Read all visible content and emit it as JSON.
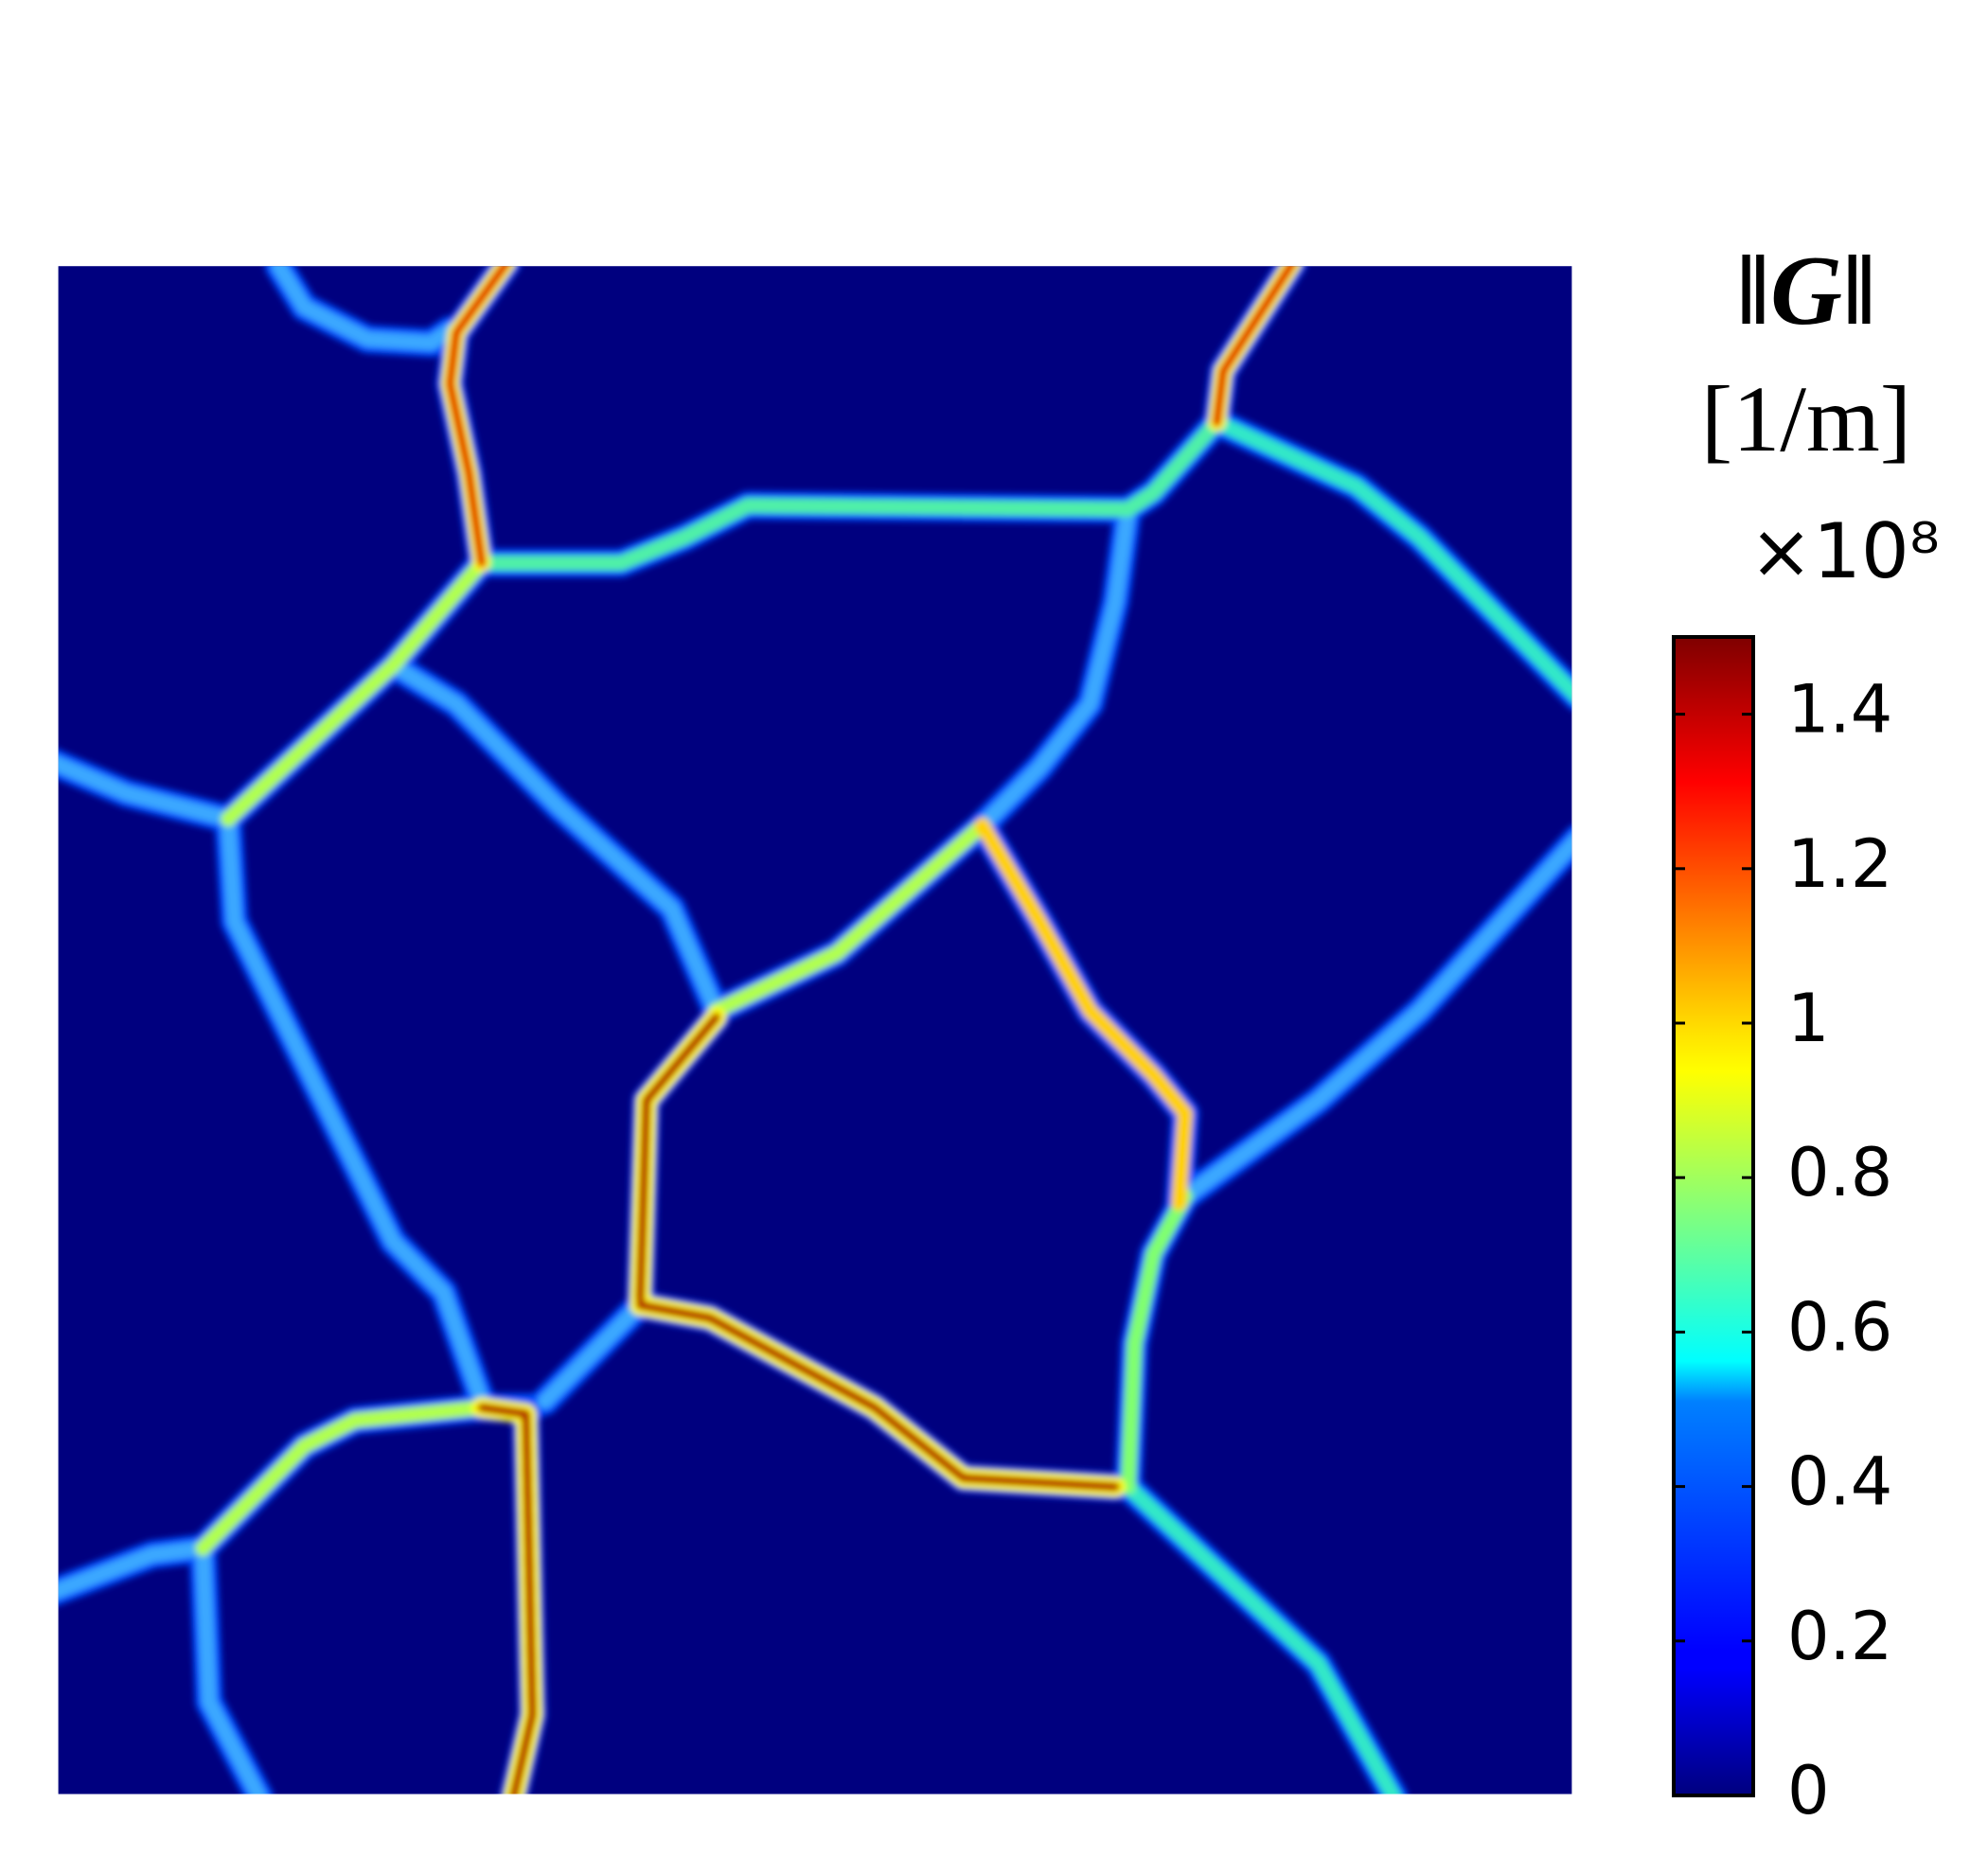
{
  "chart_data": {
    "type": "heatmap",
    "title": "‖G‖",
    "unit": "[1/m]",
    "multiplier": "×10⁸",
    "colormap": "jet",
    "clim": [
      0,
      1.5
    ],
    "cticks": [
      0,
      0.2,
      0.4,
      0.6,
      0.8,
      1,
      1.2,
      1.4
    ]
  }
}
